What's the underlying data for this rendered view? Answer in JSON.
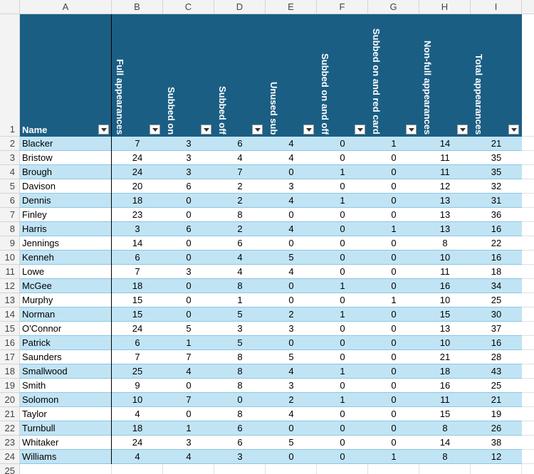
{
  "column_letters": [
    "A",
    "B",
    "C",
    "D",
    "E",
    "F",
    "G",
    "H",
    "I"
  ],
  "row_numbers": [
    1,
    2,
    3,
    4,
    5,
    6,
    7,
    8,
    9,
    10,
    11,
    12,
    13,
    14,
    15,
    16,
    17,
    18,
    19,
    20,
    21,
    22,
    23,
    24,
    25
  ],
  "table": {
    "headers": [
      "Name",
      "Full appearances",
      "Subbed on",
      "Subbed off",
      "Unused sub",
      "Subbed on and off",
      "Subbed on and red card",
      "Non-full appearances",
      "Total appearances"
    ],
    "rows": [
      [
        "Blacker",
        7,
        3,
        6,
        4,
        0,
        1,
        14,
        21
      ],
      [
        "Bristow",
        24,
        3,
        4,
        4,
        0,
        0,
        11,
        35
      ],
      [
        "Brough",
        24,
        3,
        7,
        0,
        1,
        0,
        11,
        35
      ],
      [
        "Davison",
        20,
        6,
        2,
        3,
        0,
        0,
        12,
        32
      ],
      [
        "Dennis",
        18,
        0,
        2,
        4,
        1,
        0,
        13,
        31
      ],
      [
        "Finley",
        23,
        0,
        8,
        0,
        0,
        0,
        13,
        36
      ],
      [
        "Harris",
        3,
        6,
        2,
        4,
        0,
        1,
        13,
        16
      ],
      [
        "Jennings",
        14,
        0,
        6,
        0,
        0,
        0,
        8,
        22
      ],
      [
        "Kenneh",
        6,
        0,
        4,
        5,
        0,
        0,
        10,
        16
      ],
      [
        "Lowe",
        7,
        3,
        4,
        4,
        0,
        0,
        11,
        18
      ],
      [
        "McGee",
        18,
        0,
        8,
        0,
        1,
        0,
        16,
        34
      ],
      [
        "Murphy",
        15,
        0,
        1,
        0,
        0,
        1,
        10,
        25
      ],
      [
        "Norman",
        15,
        0,
        5,
        2,
        1,
        0,
        15,
        30
      ],
      [
        "O'Connor",
        24,
        5,
        3,
        3,
        0,
        0,
        13,
        37
      ],
      [
        "Patrick",
        6,
        1,
        5,
        0,
        0,
        0,
        10,
        16
      ],
      [
        "Saunders",
        7,
        7,
        8,
        5,
        0,
        0,
        21,
        28
      ],
      [
        "Smallwood",
        25,
        4,
        8,
        4,
        1,
        0,
        18,
        43
      ],
      [
        "Smith",
        9,
        0,
        8,
        3,
        0,
        0,
        16,
        25
      ],
      [
        "Solomon",
        10,
        7,
        0,
        2,
        1,
        0,
        11,
        21
      ],
      [
        "Taylor",
        4,
        0,
        8,
        4,
        0,
        0,
        15,
        19
      ],
      [
        "Turnbull",
        18,
        1,
        6,
        0,
        0,
        0,
        8,
        26
      ],
      [
        "Whitaker",
        24,
        3,
        6,
        5,
        0,
        0,
        14,
        38
      ],
      [
        "Williams",
        4,
        4,
        3,
        0,
        0,
        1,
        8,
        12
      ]
    ]
  }
}
